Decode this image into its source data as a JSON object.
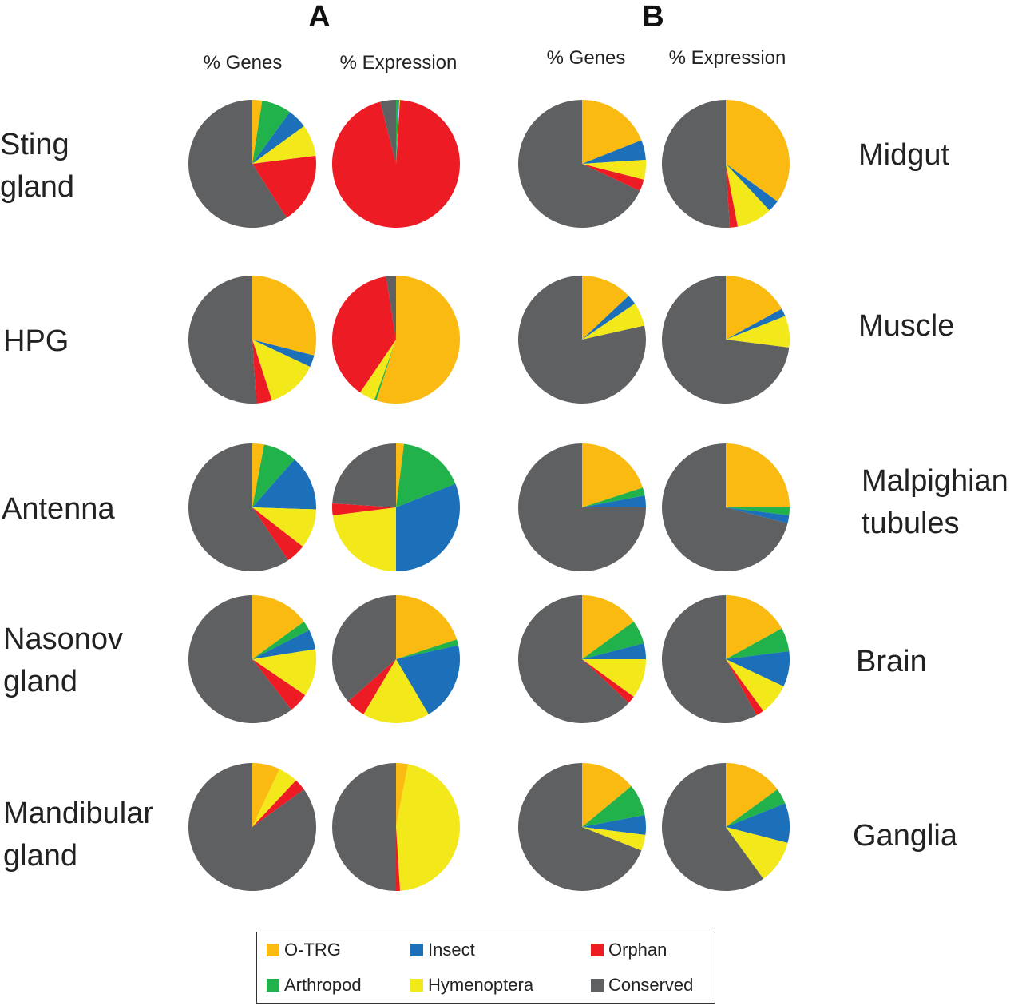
{
  "panels": [
    {
      "letter": "A",
      "col_headers": [
        "% Genes",
        "% Expression"
      ],
      "row_labels": [
        "Sting\ngland",
        "HPG",
        "Antenna",
        "Nasonov\ngland",
        "Mandibular\ngland"
      ]
    },
    {
      "letter": "B",
      "col_headers": [
        "% Genes",
        "% Expression"
      ],
      "row_labels": [
        "Midgut",
        "Muscle",
        "Malpighian\ntubules",
        "Brain",
        "Ganglia"
      ]
    }
  ],
  "legend": [
    {
      "name": "O-TRG",
      "color": "#FBBA12"
    },
    {
      "name": "Insect",
      "color": "#1B70B9"
    },
    {
      "name": "Orphan",
      "color": "#ED1C24"
    },
    {
      "name": "Arthropod",
      "color": "#22B24C"
    },
    {
      "name": "Hymenoptera",
      "color": "#F2E81A"
    },
    {
      "name": "Conserved",
      "color": "#5F6062"
    }
  ],
  "chart_data": {
    "type": "pie",
    "categories": [
      "O-TRG",
      "Arthropod",
      "Insect",
      "Hymenoptera",
      "Orphan",
      "Conserved"
    ],
    "pies": [
      {
        "panel": "A",
        "tissue": "Sting gland",
        "metric": "% Genes",
        "values": [
          2.5,
          7.5,
          5,
          8,
          18,
          59
        ]
      },
      {
        "panel": "A",
        "tissue": "Sting gland",
        "metric": "% Expression",
        "values": [
          0,
          0.5,
          0.3,
          0.2,
          95,
          4
        ]
      },
      {
        "panel": "A",
        "tissue": "HPG",
        "metric": "% Genes",
        "values": [
          29,
          0,
          3,
          13,
          4,
          51
        ]
      },
      {
        "panel": "A",
        "tissue": "HPG",
        "metric": "% Expression",
        "values": [
          55,
          0.5,
          0,
          4,
          38,
          2.5
        ]
      },
      {
        "panel": "A",
        "tissue": "Antenna",
        "metric": "% Genes",
        "values": [
          3,
          8.5,
          14,
          10,
          5,
          59.5
        ]
      },
      {
        "panel": "A",
        "tissue": "Antenna",
        "metric": "% Expression",
        "values": [
          2,
          17,
          31,
          23,
          3,
          24
        ]
      },
      {
        "panel": "A",
        "tissue": "Nasonov gland",
        "metric": "% Genes",
        "values": [
          15,
          2.5,
          5,
          12,
          5,
          60.5
        ]
      },
      {
        "panel": "A",
        "tissue": "Nasonov gland",
        "metric": "% Expression",
        "values": [
          20,
          1.5,
          20,
          17,
          5,
          36.5
        ]
      },
      {
        "panel": "A",
        "tissue": "Mandibular gland",
        "metric": "% Genes",
        "values": [
          7,
          0,
          0,
          5,
          3,
          85
        ]
      },
      {
        "panel": "A",
        "tissue": "Mandibular gland",
        "metric": "% Expression",
        "values": [
          3,
          0,
          0,
          46,
          1,
          50
        ]
      },
      {
        "panel": "B",
        "tissue": "Midgut",
        "metric": "% Genes",
        "values": [
          19,
          0,
          5,
          5,
          3,
          68
        ]
      },
      {
        "panel": "B",
        "tissue": "Midgut",
        "metric": "% Expression",
        "values": [
          35,
          0,
          3,
          9,
          2,
          51
        ]
      },
      {
        "panel": "B",
        "tissue": "Muscle",
        "metric": "% Genes",
        "values": [
          13,
          0,
          2.5,
          6,
          0,
          78.5
        ]
      },
      {
        "panel": "B",
        "tissue": "Muscle",
        "metric": "% Expression",
        "values": [
          17,
          0,
          2,
          8,
          0,
          73
        ]
      },
      {
        "panel": "B",
        "tissue": "Malpighian tubules",
        "metric": "% Genes",
        "values": [
          20,
          2,
          3,
          0,
          0,
          75
        ]
      },
      {
        "panel": "B",
        "tissue": "Malpighian tubules",
        "metric": "% Expression",
        "values": [
          25,
          2,
          2,
          0,
          0,
          71
        ]
      },
      {
        "panel": "B",
        "tissue": "Brain",
        "metric": "% Genes",
        "values": [
          15,
          6,
          4,
          10,
          2,
          63
        ]
      },
      {
        "panel": "B",
        "tissue": "Brain",
        "metric": "% Expression",
        "values": [
          17,
          6,
          9,
          8,
          2,
          58
        ]
      },
      {
        "panel": "B",
        "tissue": "Ganglia",
        "metric": "% Genes",
        "values": [
          14,
          8,
          5,
          4,
          0,
          69
        ]
      },
      {
        "panel": "B",
        "tissue": "Ganglia",
        "metric": "% Expression",
        "values": [
          15,
          4,
          10,
          11,
          0,
          60
        ]
      }
    ]
  }
}
